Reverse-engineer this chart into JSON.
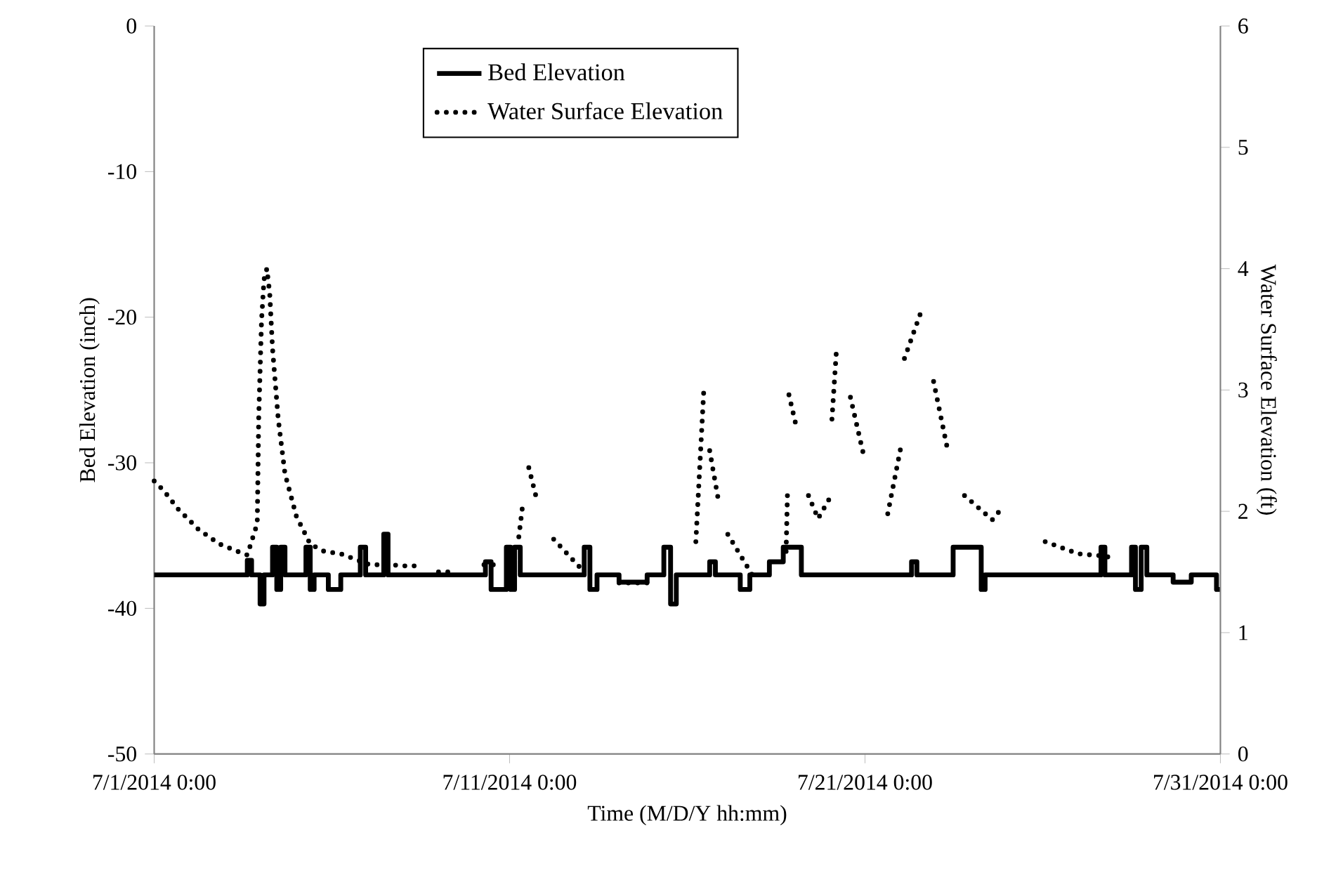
{
  "chart_data": {
    "type": "step",
    "xlabel": "Time (M/D/Y hh:mm)",
    "ylabel": "Bed Elevation (inch)",
    "y2label": "Water Surface Elevation (ft)",
    "xlim": [
      "2014-07-01T00:00",
      "2014-07-31T00:00"
    ],
    "xticks": [
      {
        "value": "2014-07-01T00:00",
        "label": "7/1/2014 0:00"
      },
      {
        "value": "2014-07-11T00:00",
        "label": "7/11/2014 0:00"
      },
      {
        "value": "2014-07-21T00:00",
        "label": "7/21/2014 0:00"
      },
      {
        "value": "2014-07-31T00:00",
        "label": "7/31/2014 0:00"
      }
    ],
    "ylim": [
      -50,
      0
    ],
    "yticks": [
      -50,
      -40,
      -30,
      -20,
      -10,
      0
    ],
    "y2lim": [
      0,
      6
    ],
    "y2ticks": [
      0,
      1,
      2,
      3,
      4,
      5,
      6
    ],
    "legend": "top",
    "grid": false,
    "marker": "none",
    "series": [
      {
        "name": "Bed Elevation",
        "color": "#000000",
        "line_style": "solid",
        "x": [
          "2014-07-01T00:00",
          "2014-07-03T14:53",
          "2014-07-03T17:46",
          "2014-07-03T23:31",
          "2014-07-04T02:10",
          "2014-07-04T07:55",
          "2014-07-04T10:48",
          "2014-07-04T13:26",
          "2014-07-04T16:19",
          "2014-07-05T06:29",
          "2014-07-05T09:22",
          "2014-07-05T12:00",
          "2014-07-05T21:36",
          "2014-07-06T06:00",
          "2014-07-06T19:12",
          "2014-07-06T22:48",
          "2014-07-07T11:02",
          "2014-07-07T13:55",
          "2014-07-10T07:41",
          "2014-07-10T11:31",
          "2014-07-10T21:50",
          "2014-07-11T00:43",
          "2014-07-11T03:22",
          "2014-07-11T07:12",
          "2014-07-13T02:24",
          "2014-07-13T06:14",
          "2014-07-13T11:02",
          "2014-07-14T01:55",
          "2014-07-14T20:53",
          "2014-07-15T08:10",
          "2014-07-15T12:43",
          "2014-07-15T16:34",
          "2014-07-16T15:07",
          "2014-07-16T18:58",
          "2014-07-17T11:46",
          "2014-07-17T18:14",
          "2014-07-18T07:26",
          "2014-07-18T16:48",
          "2014-07-19T05:02",
          "2014-07-22T07:26",
          "2014-07-22T11:02",
          "2014-07-23T11:31",
          "2014-07-24T06:29",
          "2014-07-24T09:07",
          "2014-07-27T15:22",
          "2014-07-27T18:00",
          "2014-07-28T12:00",
          "2014-07-28T14:38",
          "2014-07-28T18:29",
          "2014-07-28T22:19",
          "2014-07-29T16:05",
          "2014-07-30T04:19",
          "2014-07-30T21:22",
          "2014-07-31T00:00"
        ],
        "values": [
          -37.7,
          -36.7,
          -37.7,
          -39.7,
          -37.7,
          -35.8,
          -38.7,
          -35.8,
          -37.7,
          -35.8,
          -38.7,
          -37.7,
          -38.7,
          -37.7,
          -35.8,
          -37.7,
          -34.9,
          -37.7,
          -36.8,
          -38.7,
          -35.8,
          -38.7,
          -35.8,
          -37.7,
          -35.8,
          -38.7,
          -37.7,
          -38.2,
          -37.7,
          -35.8,
          -39.7,
          -37.7,
          -36.8,
          -37.7,
          -38.7,
          -37.7,
          -36.8,
          -35.8,
          -37.7,
          -36.8,
          -37.7,
          -35.8,
          -38.7,
          -37.7,
          -35.8,
          -37.7,
          -35.8,
          -38.7,
          -35.8,
          -37.7,
          -38.2,
          -37.7,
          -38.7,
          -38.7
        ]
      },
      {
        "name": "Water Surface Elevation",
        "type": "line",
        "axis": "y2",
        "color": "#000000",
        "line_style": "dotted",
        "x": [
          "2014-07-01T00:00",
          "2014-07-01T06:29",
          "2014-07-01T16:05",
          "2014-07-02T06:00",
          "2014-07-02T20:10",
          "2014-07-03T10:19",
          "2014-07-03T14:53",
          "2014-07-03T21:36",
          "2014-07-03T22:34",
          "2014-07-04T00:29",
          "2014-07-04T02:10",
          "2014-07-04T04:05",
          "2014-07-04T06:00",
          "2014-07-04T07:55",
          "2014-07-04T11:46",
          "2014-07-04T16:19",
          "2014-07-05T00:00",
          "2014-07-05T09:22",
          "2014-07-05T18:43",
          "2014-07-06T06:00",
          "2014-07-07T01:26",
          "2014-07-07T15:22",
          "2014-07-08T00:14",
          "2014-07-08T10:34",
          "2014-07-08T12:00",
          "2014-07-09T00:00",
          "2014-07-09T12:00",
          "2014-07-09T18:00",
          "2014-07-10T06:43",
          "2014-07-10T13:26",
          "2014-07-10T15:00",
          "2014-07-11T06:14",
          "2014-07-11T09:07",
          "2014-07-11T10:00",
          "2014-07-11T12:58",
          "2014-07-11T18:43",
          "2014-07-12T00:00",
          "2014-07-12T05:46",
          "2014-07-13T02:24",
          "2014-07-13T06:00",
          "2014-07-14T01:55",
          "2014-07-14T20:53",
          "2014-07-15T06:00",
          "2014-07-16T05:46",
          "2014-07-16T11:17",
          "2014-07-16T12:00",
          "2014-07-16T15:07",
          "2014-07-16T20:53",
          "2014-07-17T00:00",
          "2014-07-17T03:22",
          "2014-07-17T20:10",
          "2014-07-18T12:00",
          "2014-07-18T18:43",
          "2014-07-18T19:41",
          "2014-07-18T20:00",
          "2014-07-18T20:38",
          "2014-07-19T02:10",
          "2014-07-19T05:00",
          "2014-07-19T09:50",
          "2014-07-19T16:19",
          "2014-07-19T23:46",
          "2014-07-20T00:30",
          "2014-07-20T01:41",
          "2014-07-20T04:34",
          "2014-07-20T07:00",
          "2014-07-20T14:10",
          "2014-07-20T23:31",
          "2014-07-21T06:00",
          "2014-07-21T15:22",
          "2014-07-22T00:43",
          "2014-07-22T01:00",
          "2014-07-22T02:38",
          "2014-07-22T14:53",
          "2014-07-22T16:00",
          "2014-07-22T22:19",
          "2014-07-23T07:55",
          "2014-07-23T12:00",
          "2014-07-23T19:12",
          "2014-07-24T13:55",
          "2014-07-24T21:22",
          "2014-07-25T12:00",
          "2014-07-26T01:41",
          "2014-07-27T00:00",
          "2014-07-27T18:58",
          "2014-07-28T00:00"
        ],
        "values": [
          2.25,
          2.17,
          2.02,
          1.85,
          1.73,
          1.66,
          1.64,
          1.9,
          2.76,
          3.57,
          3.91,
          4.0,
          3.8,
          3.34,
          2.76,
          2.31,
          1.96,
          1.73,
          1.67,
          1.65,
          1.56,
          1.56,
          1.55,
          1.55,
          null,
          1.5,
          1.5,
          null,
          1.56,
          1.56,
          null,
          1.79,
          2.08,
          null,
          2.36,
          2.08,
          null,
          1.77,
          1.5,
          null,
          1.41,
          1.41,
          null,
          1.75,
          3.03,
          null,
          2.5,
          2.1,
          null,
          1.81,
          1.47,
          null,
          1.67,
          2.17,
          null,
          2.96,
          2.67,
          null,
          2.13,
          1.94,
          2.1,
          null,
          2.76,
          3.3,
          null,
          2.94,
          2.44,
          null,
          1.98,
          2.56,
          null,
          3.26,
          3.68,
          null,
          3.07,
          2.5,
          null,
          2.13,
          1.93,
          2.04,
          null,
          1.75,
          1.65,
          1.63,
          1.6
        ]
      }
    ]
  }
}
